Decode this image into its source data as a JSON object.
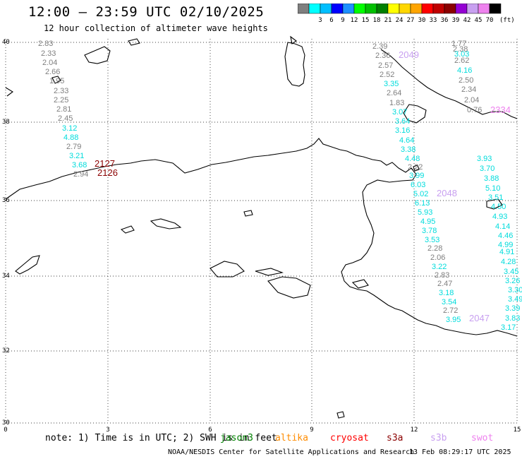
{
  "title": "12:00 – 23:59 UTC 02/10/2025",
  "subtitle": "12 hour collection of altimeter wave heights",
  "colorbar": {
    "unit": "(ft)",
    "swatches": [
      {
        "color": "#7f7f7f",
        "label": ""
      },
      {
        "color": "#00ffff",
        "label": "3"
      },
      {
        "color": "#00bfff",
        "label": "6"
      },
      {
        "color": "#0000ff",
        "label": "9"
      },
      {
        "color": "#1e90ff",
        "label": "12"
      },
      {
        "color": "#00ff00",
        "label": "15"
      },
      {
        "color": "#00c000",
        "label": "18"
      },
      {
        "color": "#008000",
        "label": "21"
      },
      {
        "color": "#ffff00",
        "label": "24"
      },
      {
        "color": "#ffd700",
        "label": "27"
      },
      {
        "color": "#ffa500",
        "label": "30"
      },
      {
        "color": "#ff0000",
        "label": "33"
      },
      {
        "color": "#c00000",
        "label": "36"
      },
      {
        "color": "#8b0000",
        "label": "39"
      },
      {
        "color": "#9400d3",
        "label": "42"
      },
      {
        "color": "#c8a0f0",
        "label": "45"
      },
      {
        "color": "#ee82ee",
        "label": "70"
      },
      {
        "color": "#000000",
        "label": ""
      }
    ]
  },
  "axes": {
    "lat_labels": [
      "40",
      "38",
      "36",
      "34",
      "32",
      "30"
    ],
    "lon_labels": [
      "0",
      "3",
      "6",
      "9",
      "12",
      "15"
    ]
  },
  "observations": [
    {
      "v": "2.83",
      "c": "#7f7f7f"
    },
    {
      "v": "2.33",
      "c": "#7f7f7f"
    },
    {
      "v": "2.04",
      "c": "#7f7f7f"
    },
    {
      "v": "2.66",
      "c": "#7f7f7f"
    },
    {
      "v": "1.95",
      "c": "#7f7f7f"
    },
    {
      "v": "2.33",
      "c": "#7f7f7f"
    },
    {
      "v": "2.25",
      "c": "#7f7f7f"
    },
    {
      "v": "2.81",
      "c": "#7f7f7f"
    },
    {
      "v": "2.45",
      "c": "#7f7f7f"
    },
    {
      "v": "3.12",
      "c": "#00dcdc"
    },
    {
      "v": "4.88",
      "c": "#00dcdc"
    },
    {
      "v": "2.79",
      "c": "#7f7f7f"
    },
    {
      "v": "3.21",
      "c": "#00dcdc"
    },
    {
      "v": "3.68",
      "c": "#00dcdc"
    },
    {
      "v": "2.94",
      "c": "#7f7f7f"
    },
    {
      "v": "2.39",
      "c": "#7f7f7f"
    },
    {
      "v": "2.36",
      "c": "#7f7f7f"
    },
    {
      "v": "2.57",
      "c": "#7f7f7f"
    },
    {
      "v": "2.52",
      "c": "#7f7f7f"
    },
    {
      "v": "3.35",
      "c": "#00dcdc"
    },
    {
      "v": "2.64",
      "c": "#7f7f7f"
    },
    {
      "v": "1.83",
      "c": "#7f7f7f"
    },
    {
      "v": "3.07",
      "c": "#00dcdc"
    },
    {
      "v": "3.64",
      "c": "#00dcdc"
    },
    {
      "v": "3.16",
      "c": "#00dcdc"
    },
    {
      "v": "4.64",
      "c": "#00dcdc"
    },
    {
      "v": "3.38",
      "c": "#00dcdc"
    },
    {
      "v": "4.48",
      "c": "#00dcdc"
    },
    {
      "v": "2.22",
      "c": "#7f7f7f"
    },
    {
      "v": "3.99",
      "c": "#00dcdc"
    },
    {
      "v": "6.03",
      "c": "#00dcdc"
    },
    {
      "v": "5.02",
      "c": "#00dcdc"
    },
    {
      "v": "6.13",
      "c": "#00dcdc"
    },
    {
      "v": "5.93",
      "c": "#00dcdc"
    },
    {
      "v": "4.95",
      "c": "#00dcdc"
    },
    {
      "v": "3.78",
      "c": "#00dcdc"
    },
    {
      "v": "3.53",
      "c": "#00dcdc"
    },
    {
      "v": "2.28",
      "c": "#7f7f7f"
    },
    {
      "v": "2.06",
      "c": "#7f7f7f"
    },
    {
      "v": "3.22",
      "c": "#00dcdc"
    },
    {
      "v": "2.83",
      "c": "#7f7f7f"
    },
    {
      "v": "2.47",
      "c": "#7f7f7f"
    },
    {
      "v": "3.18",
      "c": "#00dcdc"
    },
    {
      "v": "3.54",
      "c": "#00dcdc"
    },
    {
      "v": "2.72",
      "c": "#7f7f7f"
    },
    {
      "v": "3.95",
      "c": "#00dcdc"
    },
    {
      "v": "1.77",
      "c": "#7f7f7f"
    },
    {
      "v": "2.38",
      "c": "#7f7f7f"
    },
    {
      "v": "3.03",
      "c": "#00dcdc"
    },
    {
      "v": "2.62",
      "c": "#7f7f7f"
    },
    {
      "v": "4.16",
      "c": "#00dcdc"
    },
    {
      "v": "2.50",
      "c": "#7f7f7f"
    },
    {
      "v": "2.34",
      "c": "#7f7f7f"
    },
    {
      "v": "2.04",
      "c": "#7f7f7f"
    },
    {
      "v": "0.76",
      "c": "#7f7f7f"
    },
    {
      "v": "3.93",
      "c": "#00dcdc"
    },
    {
      "v": "3.70",
      "c": "#00dcdc"
    },
    {
      "v": "3.88",
      "c": "#00dcdc"
    },
    {
      "v": "5.10",
      "c": "#00dcdc"
    },
    {
      "v": "3.51",
      "c": "#00dcdc"
    },
    {
      "v": "4.50",
      "c": "#00dcdc"
    },
    {
      "v": "4.93",
      "c": "#00dcdc"
    },
    {
      "v": "4.14",
      "c": "#00dcdc"
    },
    {
      "v": "4.46",
      "c": "#00dcdc"
    },
    {
      "v": "4.99",
      "c": "#00dcdc"
    },
    {
      "v": "4.91",
      "c": "#00dcdc"
    },
    {
      "v": "4.28",
      "c": "#00dcdc"
    },
    {
      "v": "3.45",
      "c": "#00dcdc"
    },
    {
      "v": "3.26",
      "c": "#00dcdc"
    },
    {
      "v": "3.30",
      "c": "#00dcdc"
    },
    {
      "v": "3.49",
      "c": "#00dcdc"
    },
    {
      "v": "3.39",
      "c": "#00dcdc"
    },
    {
      "v": "3.83",
      "c": "#00dcdc"
    },
    {
      "v": "3.17",
      "c": "#00dcdc"
    }
  ],
  "pass_times": [
    {
      "v": "2127",
      "c": "#8b0000"
    },
    {
      "v": "2126",
      "c": "#8b0000"
    },
    {
      "v": "2049",
      "c": "#c8a0f0"
    },
    {
      "v": "2048",
      "c": "#c8a0f0"
    },
    {
      "v": "2047",
      "c": "#c8a0f0"
    },
    {
      "v": "2334",
      "c": "#ee82ee"
    }
  ],
  "note": {
    "prefix": "note: 1) Time is in UTC; 2) SWH is in feet",
    "satellites": [
      {
        "name": "jason3",
        "color": "#008000"
      },
      {
        "name": "altika",
        "color": "#ff8c00"
      },
      {
        "name": "cryosat",
        "color": "#ff0000"
      },
      {
        "name": "s3a",
        "color": "#8b0000"
      },
      {
        "name": "s3b",
        "color": "#c8a0f0"
      },
      {
        "name": "swot",
        "color": "#ee82ee"
      }
    ]
  },
  "footer": {
    "credit": "NOAA/NESDIS Center for Satellite Applications and Research",
    "timestamp": "13 Feb 08:29:17 UTC 2025"
  }
}
